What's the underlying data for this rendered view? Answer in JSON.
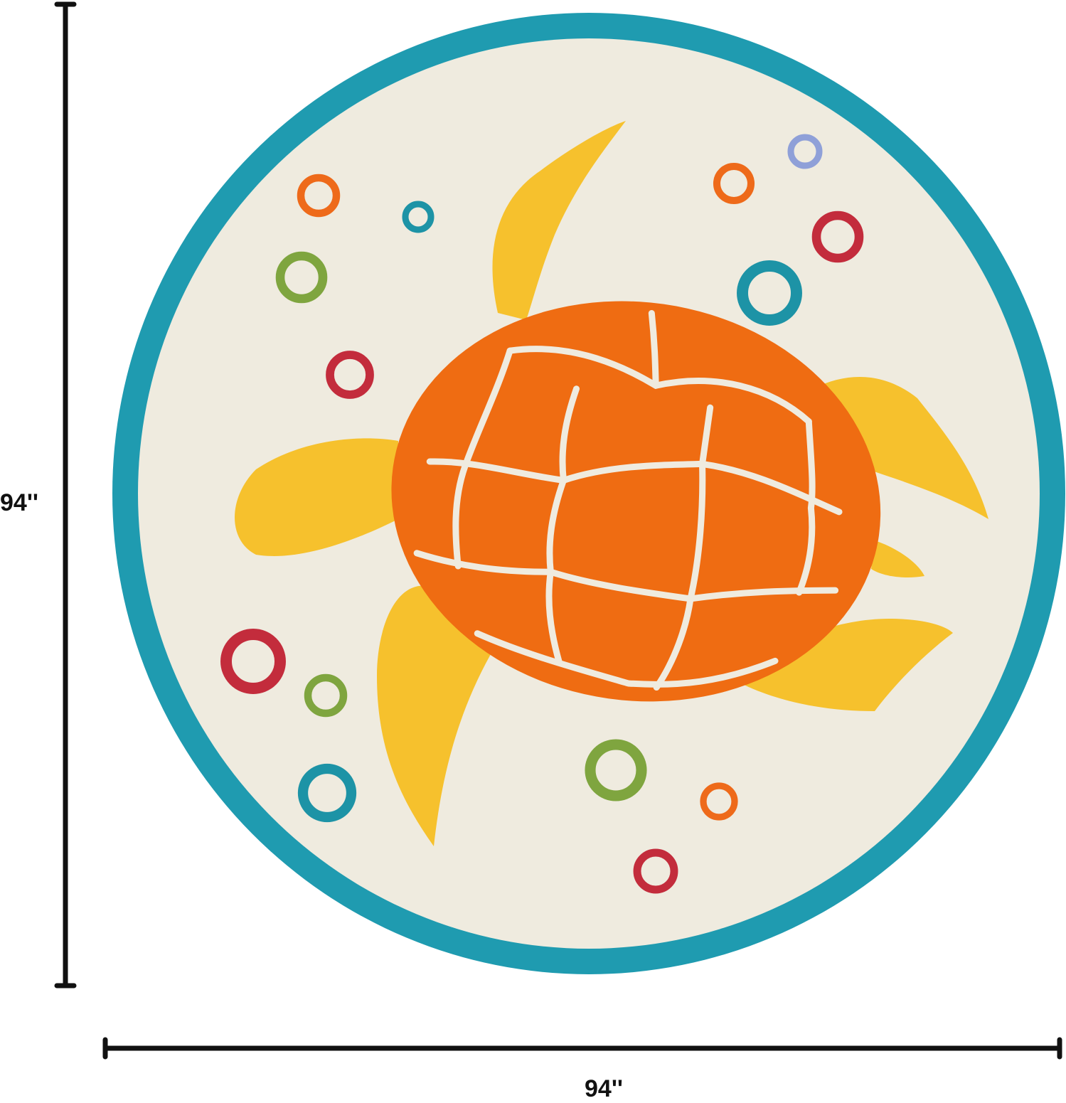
{
  "dimensions": {
    "height_label": "94''",
    "width_label": "94''"
  },
  "colors": {
    "border": "#1f9bb0",
    "field": "#efebdf",
    "shell": "#ef6c12",
    "flipper": "#f6c12d",
    "ring_orange": "#ee6a1a",
    "ring_teal": "#1d93a6",
    "ring_green": "#7fa53f",
    "ring_red": "#c32c3c",
    "ring_lavender": "#8fa0d8"
  }
}
